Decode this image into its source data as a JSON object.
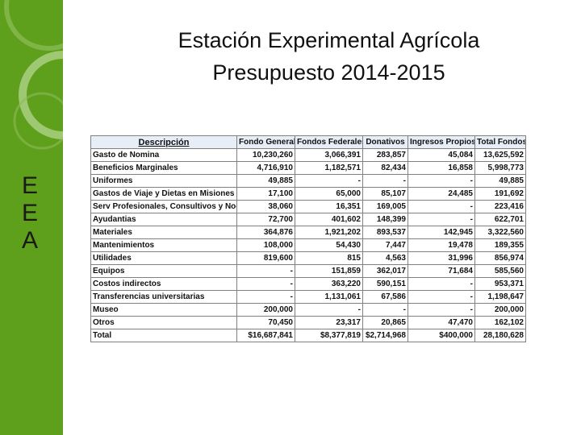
{
  "colors": {
    "sidebar": "#5e9f1c",
    "header_bg": "#e7eef8"
  },
  "sidebar": {
    "letters": [
      "E",
      "E",
      "A"
    ]
  },
  "title": {
    "line1": "Estación Experimental Agrícola",
    "line2": "Presupuesto  2014-2015"
  },
  "table": {
    "headers": [
      "Descripción",
      "Fondo General",
      "Fondos Federales",
      "Donativos",
      "Ingresos Propios",
      "Total Fondos"
    ],
    "rows": [
      [
        "Gasto de Nomina",
        "10,230,260",
        "3,066,391",
        "283,857",
        "45,084",
        "13,625,592"
      ],
      [
        "Beneficios Marginales",
        "4,716,910",
        "1,182,571",
        "82,434",
        "16,858",
        "5,998,773"
      ],
      [
        "Uniformes",
        "49,885",
        "-",
        "-",
        "-",
        "49,885"
      ],
      [
        "Gastos de Viaje y Dietas en Misiones Ofici",
        "17,100",
        "65,000",
        "85,107",
        "24,485",
        "191,692"
      ],
      [
        "Serv Profesionales, Consultivos y No-Prof",
        "38,060",
        "16,351",
        "169,005",
        "-",
        "223,416"
      ],
      [
        "Ayudantias",
        "72,700",
        "401,602",
        "148,399",
        "-",
        "622,701"
      ],
      [
        "Materiales",
        "364,876",
        "1,921,202",
        "893,537",
        "142,945",
        "3,322,560"
      ],
      [
        "Mantenimientos",
        "108,000",
        "54,430",
        "7,447",
        "19,478",
        "189,355"
      ],
      [
        "Utilidades",
        "819,600",
        "815",
        "4,563",
        "31,996",
        "856,974"
      ],
      [
        "Equipos",
        "-",
        "151,859",
        "362,017",
        "71,684",
        "585,560"
      ],
      [
        "Costos indirectos",
        "-",
        "363,220",
        "590,151",
        "-",
        "953,371"
      ],
      [
        "Transferencias universitarias",
        "-",
        "1,131,061",
        "67,586",
        "-",
        "1,198,647"
      ],
      [
        "Museo",
        "200,000",
        "-",
        "-",
        "-",
        "200,000"
      ],
      [
        "Otros",
        "70,450",
        "23,317",
        "20,865",
        "47,470",
        "162,102"
      ],
      [
        "Total",
        "$16,687,841",
        "$8,377,819",
        "$2,714,968",
        "$400,000",
        "28,180,628"
      ]
    ]
  }
}
